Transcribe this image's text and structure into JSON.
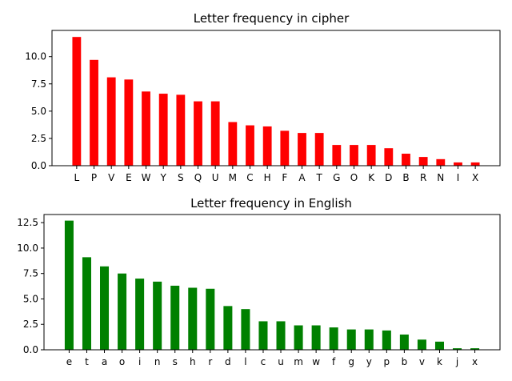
{
  "chart_data": [
    {
      "type": "bar",
      "title": "Letter frequency in cipher",
      "xlabel": "",
      "ylabel": "",
      "categories": [
        "L",
        "P",
        "V",
        "E",
        "W",
        "Y",
        "S",
        "Q",
        "U",
        "M",
        "C",
        "H",
        "F",
        "A",
        "T",
        "G",
        "O",
        "K",
        "D",
        "B",
        "R",
        "N",
        "I",
        "X"
      ],
      "values": [
        11.8,
        9.7,
        8.1,
        7.9,
        6.8,
        6.6,
        6.5,
        5.9,
        5.9,
        4.0,
        3.7,
        3.6,
        3.2,
        3.0,
        3.0,
        1.9,
        1.9,
        1.9,
        1.6,
        1.1,
        0.8,
        0.6,
        0.3,
        0.3
      ],
      "ylim": [
        0,
        12.4
      ],
      "yticks": [
        "0.0",
        "2.5",
        "5.0",
        "7.5",
        "10.0"
      ],
      "ytick_values": [
        0,
        2.5,
        5.0,
        7.5,
        10.0
      ],
      "color": "#ff0000",
      "grid": false,
      "legend": "none"
    },
    {
      "type": "bar",
      "title": "Letter frequency in English",
      "xlabel": "",
      "ylabel": "",
      "categories": [
        "e",
        "t",
        "a",
        "o",
        "i",
        "n",
        "s",
        "h",
        "r",
        "d",
        "l",
        "c",
        "u",
        "m",
        "w",
        "f",
        "g",
        "y",
        "p",
        "b",
        "v",
        "k",
        "j",
        "x"
      ],
      "values": [
        12.7,
        9.1,
        8.2,
        7.5,
        7.0,
        6.7,
        6.3,
        6.1,
        6.0,
        4.3,
        4.0,
        2.8,
        2.8,
        2.4,
        2.4,
        2.2,
        2.0,
        2.0,
        1.9,
        1.5,
        1.0,
        0.8,
        0.15,
        0.15
      ],
      "ylim": [
        0,
        13.3
      ],
      "yticks": [
        "0.0",
        "2.5",
        "5.0",
        "7.5",
        "10.0",
        "12.5"
      ],
      "ytick_values": [
        0,
        2.5,
        5.0,
        7.5,
        10.0,
        12.5
      ],
      "color": "#008000",
      "grid": false,
      "legend": "none"
    }
  ]
}
